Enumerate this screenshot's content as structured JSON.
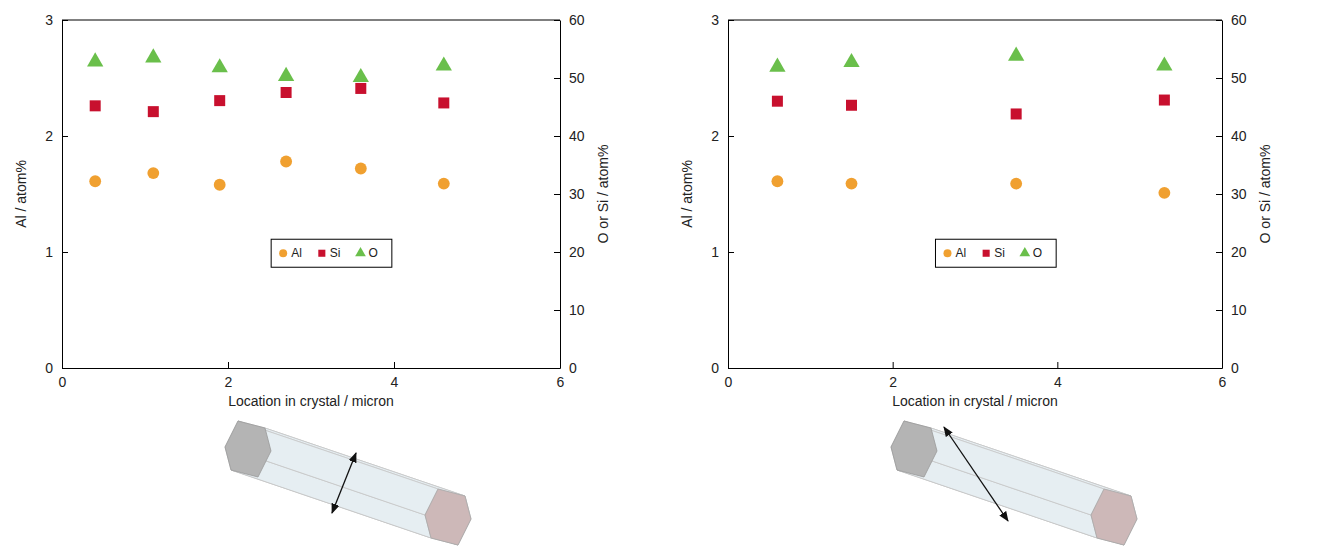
{
  "chart_data": [
    {
      "type": "scatter",
      "xlabel": "Location in crystal / micron",
      "ylabel": "Al / atom%",
      "y2label": "O or Si / atom%",
      "x": [
        0.4,
        1.1,
        1.9,
        2.7,
        3.6,
        4.6
      ],
      "xlim": [
        0,
        6
      ],
      "xticks": [
        0,
        2,
        4,
        6
      ],
      "ylim": [
        0,
        3
      ],
      "yticks": [
        0,
        1,
        2,
        3
      ],
      "y2lim": [
        0,
        60
      ],
      "y2ticks": [
        0,
        10,
        20,
        30,
        40,
        50,
        60
      ],
      "legend": "center",
      "series": [
        {
          "name": "Al",
          "color": "#f0a030",
          "marker": "circle",
          "values": [
            1.61,
            1.68,
            1.58,
            1.78,
            1.72,
            1.59
          ]
        },
        {
          "name": "Si",
          "color": "#c8102e",
          "marker": "square",
          "axis": "y2",
          "values": [
            45.2,
            44.2,
            46.1,
            47.5,
            48.2,
            45.7
          ]
        },
        {
          "name": "O",
          "color": "#6abf4b",
          "marker": "triangle",
          "axis": "y2",
          "values": [
            52.8,
            53.5,
            51.8,
            50.3,
            50.1,
            52.1
          ]
        }
      ]
    },
    {
      "type": "scatter",
      "xlabel": "Location in crystal / micron",
      "ylabel": "Al / atom%",
      "y2label": "O or Si / atom%",
      "x": [
        0.6,
        1.5,
        3.5,
        5.3
      ],
      "xlim": [
        0,
        6
      ],
      "xticks": [
        0,
        2,
        4,
        6
      ],
      "ylim": [
        0,
        3
      ],
      "yticks": [
        0,
        1,
        2,
        3
      ],
      "y2lim": [
        0,
        60
      ],
      "y2ticks": [
        0,
        10,
        20,
        30,
        40,
        50,
        60
      ],
      "legend": "center",
      "series": [
        {
          "name": "Al",
          "color": "#f0a030",
          "marker": "circle",
          "values": [
            1.61,
            1.59,
            1.59,
            1.51
          ]
        },
        {
          "name": "Si",
          "color": "#c8102e",
          "marker": "square",
          "axis": "y2",
          "values": [
            46.0,
            45.3,
            43.8,
            46.2
          ]
        },
        {
          "name": "O",
          "color": "#6abf4b",
          "marker": "triangle",
          "axis": "y2",
          "values": [
            51.9,
            52.7,
            53.8,
            52.1
          ]
        }
      ]
    }
  ]
}
